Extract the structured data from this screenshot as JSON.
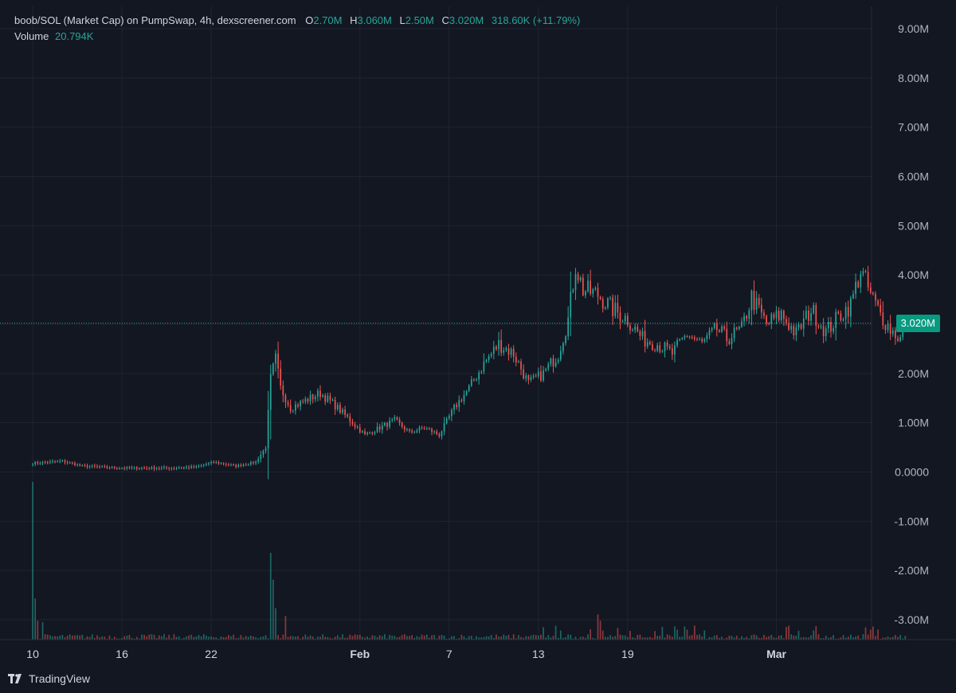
{
  "legend": {
    "title": "boob/SOL (Market Cap) on PumpSwap, 4h, dexscreener.com",
    "o_key": "O",
    "o_val": "2.70M",
    "h_key": "H",
    "h_val": "3.060M",
    "l_key": "L",
    "l_val": "2.50M",
    "c_key": "C",
    "c_val": "3.020M",
    "change": "318.60K (+11.79%)",
    "volume_key": "Volume",
    "volume_val": "20.794K"
  },
  "last_price_label": "3.020M",
  "brand": {
    "name": "TradingView",
    "logo": "tradingview-logo"
  },
  "colors": {
    "background": "#131722",
    "up": "#26a69a",
    "down": "#ef5350",
    "grid": "#1f2430",
    "text": "#d1d4dc"
  },
  "chart_data": {
    "type": "candlestick",
    "interval": "4h",
    "y_ticks": [
      "9.00M",
      "8.00M",
      "7.00M",
      "6.00M",
      "5.00M",
      "4.00M",
      "3.00M",
      "2.00M",
      "1.00M",
      "0.0000",
      "-1.00M",
      "-2.00M",
      "-3.00M"
    ],
    "ylim": [
      -3.35,
      9.3
    ],
    "x_ticks": [
      {
        "label": "10",
        "day": 10
      },
      {
        "label": "16",
        "day": 16
      },
      {
        "label": "22",
        "day": 22
      },
      {
        "label": "Feb",
        "day": 32
      },
      {
        "label": "7",
        "day": 38
      },
      {
        "label": "13",
        "day": 44
      },
      {
        "label": "19",
        "day": 50
      },
      {
        "label": "Mar",
        "day": 60
      }
    ],
    "xlim": [
      7.8,
      66.4
    ],
    "start_day": 10,
    "candles_per_day": 6,
    "last_close": 3.02,
    "close_path": [
      [
        0,
        0.18
      ],
      [
        12,
        0.22
      ],
      [
        20,
        0.12
      ],
      [
        35,
        0.08
      ],
      [
        55,
        0.08
      ],
      [
        66,
        0.1
      ],
      [
        73,
        0.2
      ],
      [
        82,
        0.12
      ],
      [
        90,
        0.2
      ],
      [
        94,
        0.5
      ],
      [
        96,
        1.9
      ],
      [
        98,
        2.3
      ],
      [
        100,
        1.7
      ],
      [
        104,
        1.3
      ],
      [
        110,
        1.45
      ],
      [
        116,
        1.6
      ],
      [
        122,
        1.35
      ],
      [
        128,
        1.05
      ],
      [
        134,
        0.75
      ],
      [
        140,
        0.9
      ],
      [
        146,
        1.05
      ],
      [
        152,
        0.8
      ],
      [
        158,
        0.9
      ],
      [
        164,
        0.75
      ],
      [
        170,
        1.3
      ],
      [
        176,
        1.7
      ],
      [
        182,
        2.2
      ],
      [
        188,
        2.6
      ],
      [
        194,
        2.4
      ],
      [
        200,
        1.8
      ],
      [
        206,
        2.0
      ],
      [
        212,
        2.4
      ],
      [
        216,
        3.1
      ],
      [
        219,
        4.2
      ],
      [
        222,
        3.7
      ],
      [
        228,
        3.6
      ],
      [
        234,
        3.3
      ],
      [
        240,
        3.1
      ],
      [
        246,
        2.7
      ],
      [
        252,
        2.6
      ],
      [
        258,
        2.4
      ],
      [
        264,
        2.8
      ],
      [
        270,
        2.6
      ],
      [
        276,
        2.9
      ],
      [
        280,
        2.7
      ],
      [
        286,
        2.9
      ],
      [
        290,
        3.55
      ],
      [
        296,
        3.0
      ],
      [
        302,
        3.2
      ],
      [
        308,
        2.8
      ],
      [
        314,
        3.3
      ],
      [
        320,
        2.85
      ],
      [
        326,
        3.2
      ],
      [
        330,
        3.4
      ],
      [
        334,
        4.1
      ],
      [
        338,
        3.6
      ],
      [
        342,
        3.2
      ],
      [
        346,
        2.9
      ],
      [
        350,
        2.7
      ],
      [
        352,
        3.02
      ]
    ],
    "volume_spikes": [
      {
        "candle": 0,
        "value": 1.0
      },
      {
        "candle": 1,
        "value": 0.26
      },
      {
        "candle": 2,
        "value": 0.12
      },
      {
        "candle": 4,
        "value": 0.11
      },
      {
        "candle": 96,
        "value": 0.55
      },
      {
        "candle": 97,
        "value": 0.38
      },
      {
        "candle": 98,
        "value": 0.2
      },
      {
        "candle": 102,
        "value": 0.15
      },
      {
        "candle": 228,
        "value": 0.16
      },
      {
        "candle": 229,
        "value": 0.12
      }
    ],
    "volume_scale_max": 20
  }
}
